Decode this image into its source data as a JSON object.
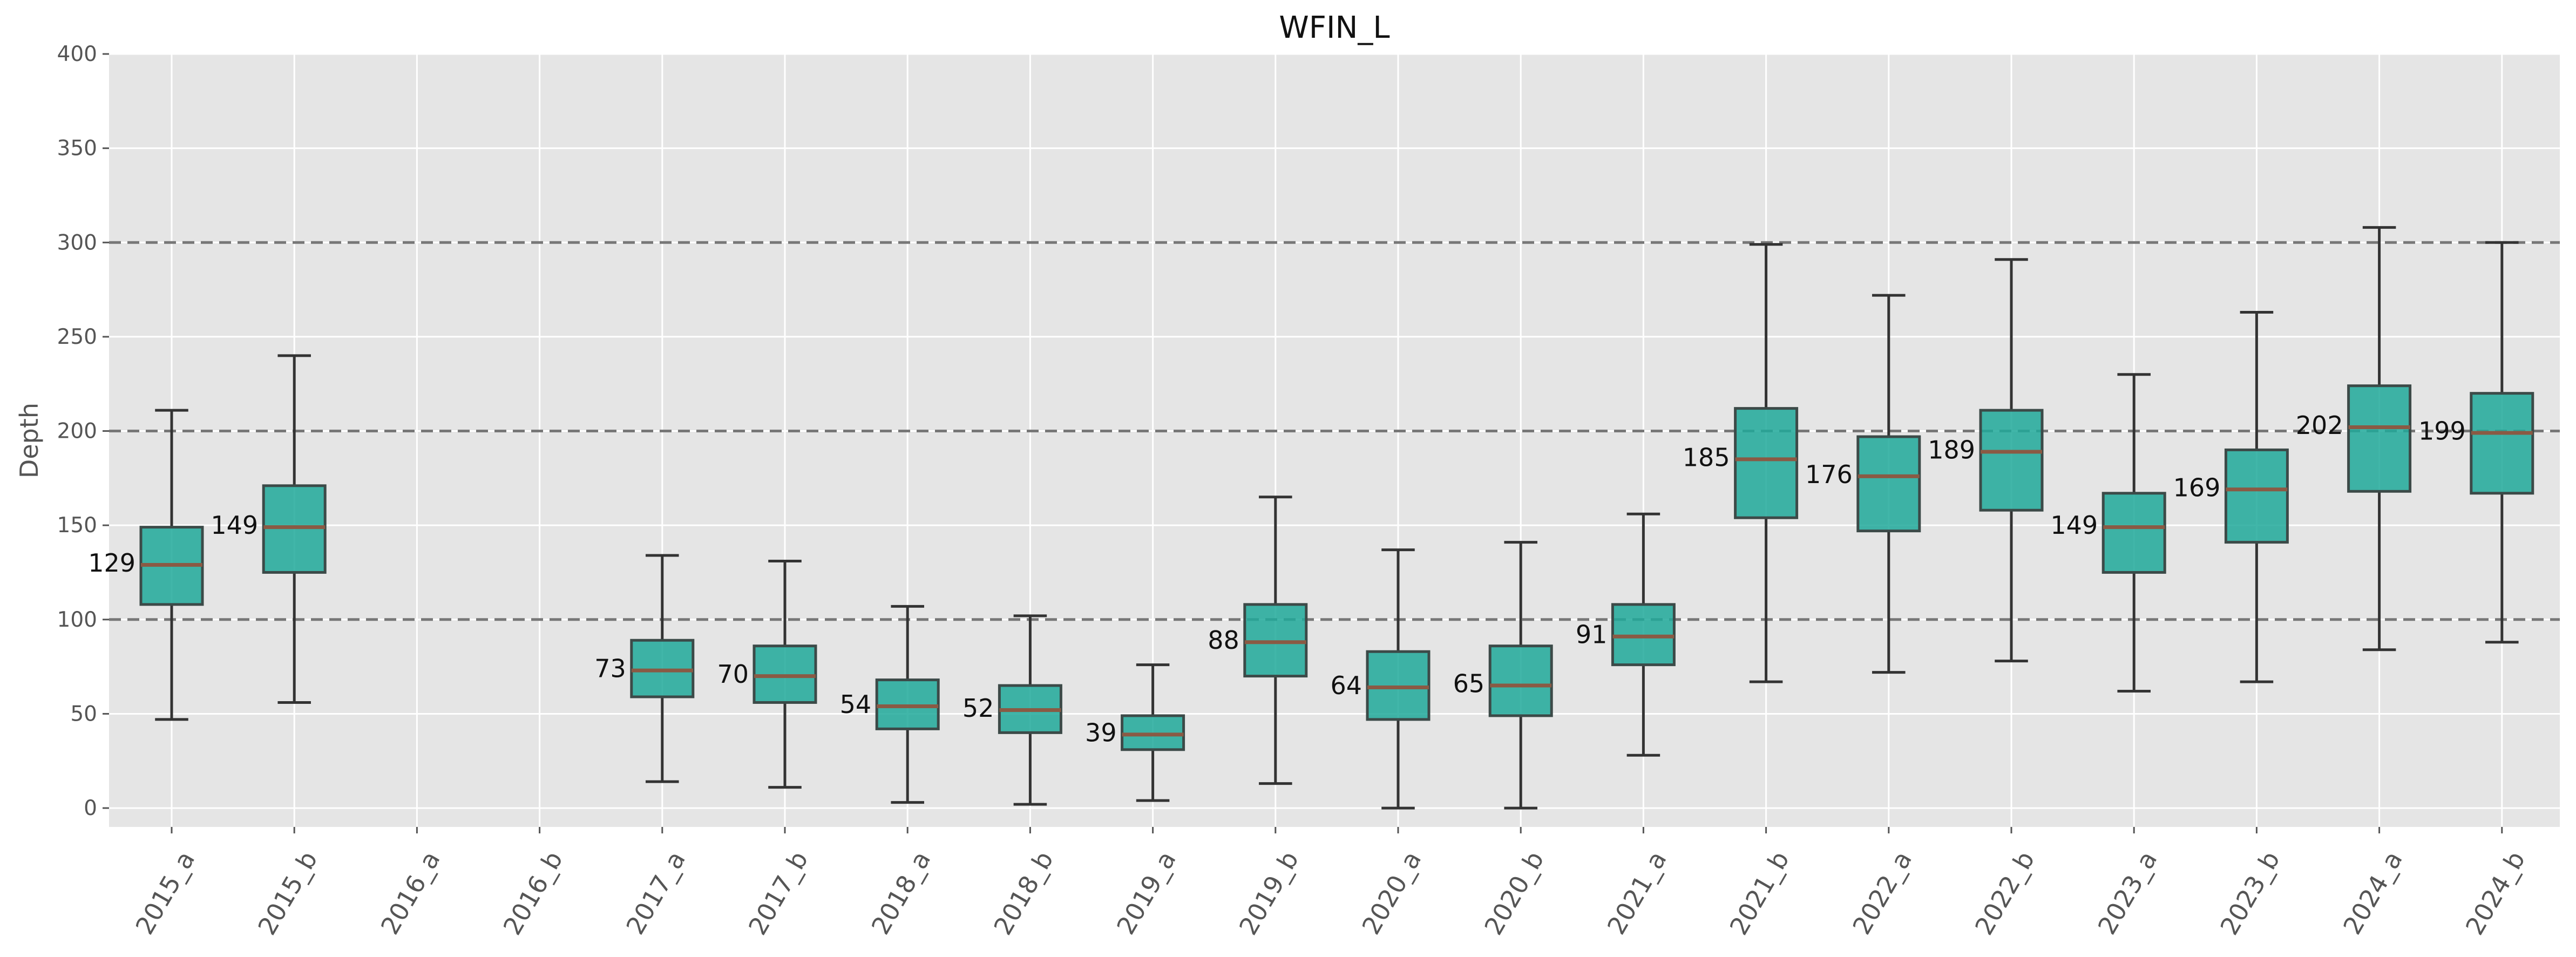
{
  "chart_data": {
    "type": "box",
    "title": "WFIN_L",
    "xlabel": "",
    "ylabel": "Depth",
    "ylim": [
      -10,
      400
    ],
    "yticks": [
      0,
      50,
      100,
      150,
      200,
      250,
      300,
      350,
      400
    ],
    "grid": true,
    "reference_lines": [
      100,
      200,
      300
    ],
    "colors": {
      "box_fill": "#20a99a",
      "box_edge": "#3c4a48",
      "median": "#8a5a44",
      "whisker": "#333333",
      "reference_line": "#777777",
      "plot_background": "#e5e5e5",
      "grid": "#ffffff"
    },
    "categories": [
      "2015_a",
      "2015_b",
      "2016_a",
      "2016_b",
      "2017_a",
      "2017_b",
      "2018_a",
      "2018_b",
      "2019_a",
      "2019_b",
      "2020_a",
      "2020_b",
      "2021_a",
      "2021_b",
      "2022_a",
      "2022_b",
      "2023_a",
      "2023_b",
      "2024_a",
      "2024_b"
    ],
    "boxes": [
      {
        "category": "2015_a",
        "whisker_low": 47,
        "q1": 108,
        "median": 129,
        "q3": 149,
        "whisker_high": 211,
        "median_label": "129"
      },
      {
        "category": "2015_b",
        "whisker_low": 56,
        "q1": 125,
        "median": 149,
        "q3": 171,
        "whisker_high": 240,
        "median_label": "149"
      },
      {
        "category": "2016_a"
      },
      {
        "category": "2016_b"
      },
      {
        "category": "2017_a",
        "whisker_low": 14,
        "q1": 59,
        "median": 73,
        "q3": 89,
        "whisker_high": 134,
        "median_label": "73"
      },
      {
        "category": "2017_b",
        "whisker_low": 11,
        "q1": 56,
        "median": 70,
        "q3": 86,
        "whisker_high": 131,
        "median_label": "70"
      },
      {
        "category": "2018_a",
        "whisker_low": 3,
        "q1": 42,
        "median": 54,
        "q3": 68,
        "whisker_high": 107,
        "median_label": "54"
      },
      {
        "category": "2018_b",
        "whisker_low": 2,
        "q1": 40,
        "median": 52,
        "q3": 65,
        "whisker_high": 102,
        "median_label": "52"
      },
      {
        "category": "2019_a",
        "whisker_low": 4,
        "q1": 31,
        "median": 39,
        "q3": 49,
        "whisker_high": 76,
        "median_label": "39"
      },
      {
        "category": "2019_b",
        "whisker_low": 13,
        "q1": 70,
        "median": 88,
        "q3": 108,
        "whisker_high": 165,
        "median_label": "88"
      },
      {
        "category": "2020_a",
        "whisker_low": 0,
        "q1": 47,
        "median": 64,
        "q3": 83,
        "whisker_high": 137,
        "median_label": "64"
      },
      {
        "category": "2020_b",
        "whisker_low": 0,
        "q1": 49,
        "median": 65,
        "q3": 86,
        "whisker_high": 141,
        "median_label": "65"
      },
      {
        "category": "2021_a",
        "whisker_low": 28,
        "q1": 76,
        "median": 91,
        "q3": 108,
        "whisker_high": 156,
        "median_label": "91"
      },
      {
        "category": "2021_b",
        "whisker_low": 67,
        "q1": 154,
        "median": 185,
        "q3": 212,
        "whisker_high": 299,
        "median_label": "185"
      },
      {
        "category": "2022_a",
        "whisker_low": 72,
        "q1": 147,
        "median": 176,
        "q3": 197,
        "whisker_high": 272,
        "median_label": "176"
      },
      {
        "category": "2022_b",
        "whisker_low": 78,
        "q1": 158,
        "median": 189,
        "q3": 211,
        "whisker_high": 291,
        "median_label": "189"
      },
      {
        "category": "2023_a",
        "whisker_low": 62,
        "q1": 125,
        "median": 149,
        "q3": 167,
        "whisker_high": 230,
        "median_label": "149"
      },
      {
        "category": "2023_b",
        "whisker_low": 67,
        "q1": 141,
        "median": 169,
        "q3": 190,
        "whisker_high": 263,
        "median_label": "169"
      },
      {
        "category": "2024_a",
        "whisker_low": 84,
        "q1": 168,
        "median": 202,
        "q3": 224,
        "whisker_high": 308,
        "median_label": "202"
      },
      {
        "category": "2024_b",
        "whisker_low": 88,
        "q1": 167,
        "median": 199,
        "q3": 220,
        "whisker_high": 300,
        "median_label": "199"
      }
    ]
  }
}
